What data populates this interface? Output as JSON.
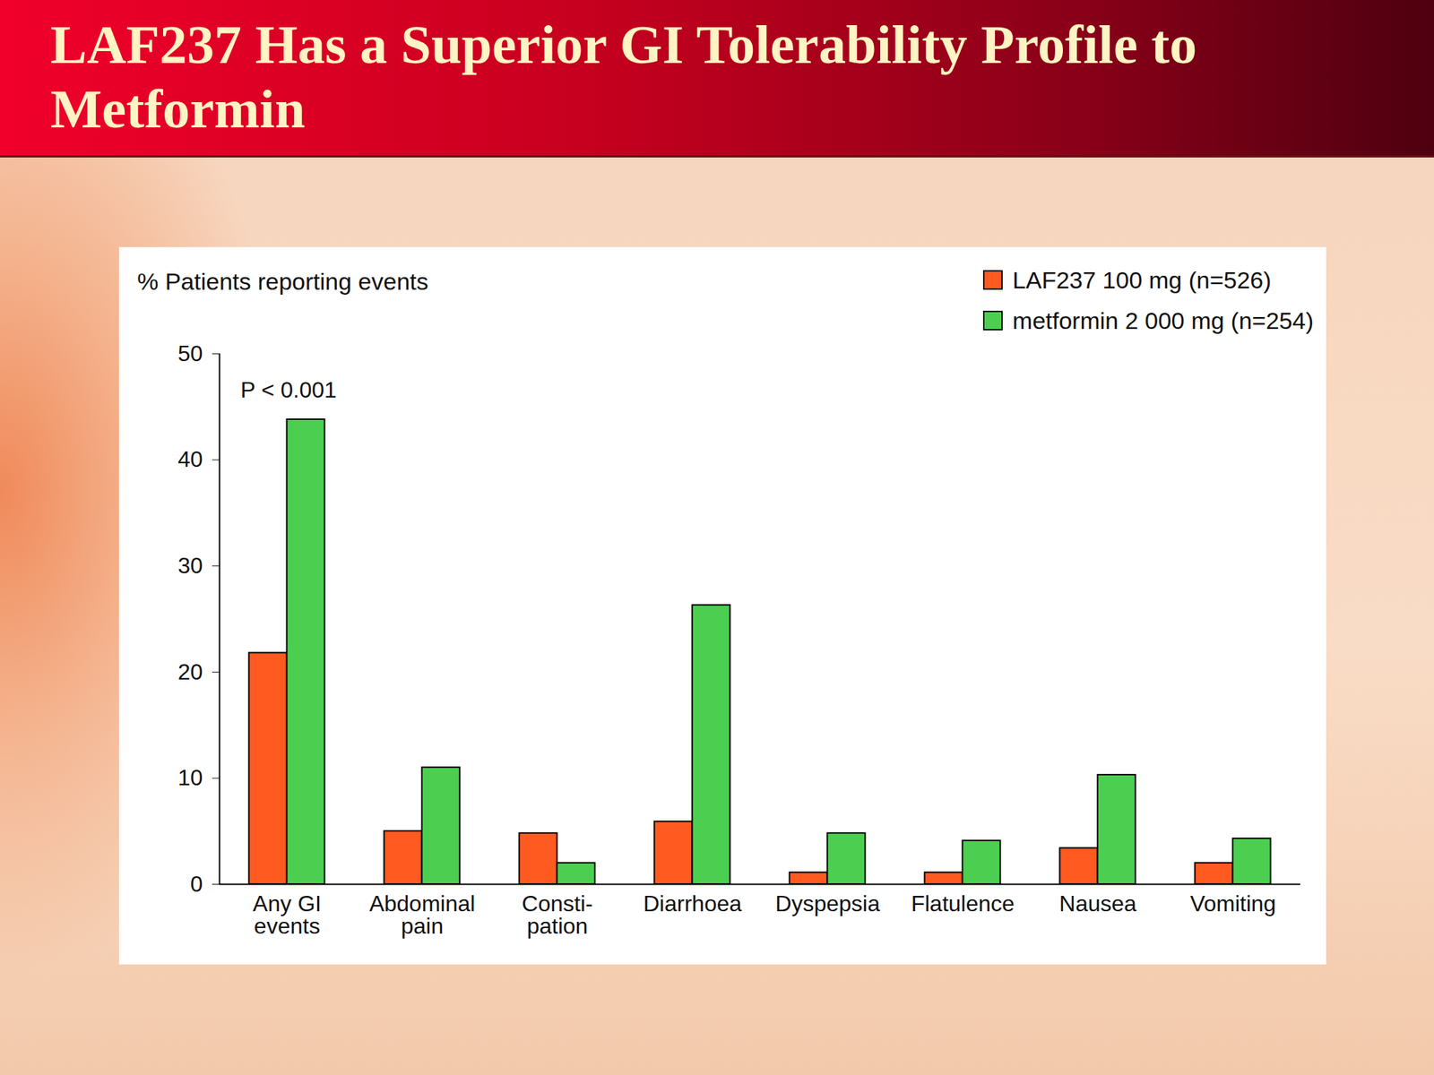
{
  "chart_data": {
    "type": "bar",
    "title": "LAF237 Has a Superior GI Tolerability Profile to Metformin",
    "y_label": "% Patients reporting events",
    "annotations": [
      "P < 0.001"
    ],
    "categories": [
      "Any GI\nevents",
      "Abdominal\npain",
      "Consti-\npation",
      "Diarrhoea",
      "Dyspepsia",
      "Flatulence",
      "Nausea",
      "Vomiting"
    ],
    "series": [
      {
        "name": "LAF237 100 mg (n=526)",
        "color": "#ff5a1f",
        "values": [
          21.8,
          5.0,
          4.8,
          5.9,
          1.1,
          1.1,
          3.4,
          2.0
        ]
      },
      {
        "name": "metformin 2 000 mg (n=254)",
        "color": "#4ccf50",
        "values": [
          43.8,
          11.0,
          2.0,
          26.3,
          4.8,
          4.1,
          10.3,
          4.3
        ]
      }
    ],
    "ylim": [
      0,
      50
    ],
    "yticks": [
      0,
      10,
      20,
      30,
      40,
      50
    ],
    "grid": false,
    "legend": "top-right"
  }
}
